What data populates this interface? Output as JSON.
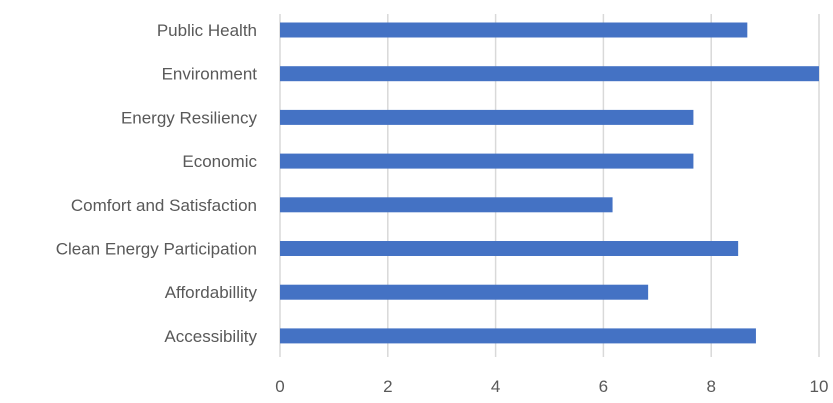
{
  "chart_data": {
    "type": "bar",
    "orientation": "horizontal",
    "title": "",
    "xlabel": "",
    "ylabel": "",
    "categories": [
      "Public Health",
      "Environment",
      "Energy Resiliency",
      "Economic",
      "Comfort and Satisfaction",
      "Clean Energy Participation",
      "Affordabillity",
      "Accessibility"
    ],
    "values": [
      8.67,
      10.0,
      7.67,
      7.67,
      6.17,
      8.5,
      6.83,
      8.83
    ],
    "xlim": [
      0,
      10
    ],
    "x_ticks": [
      "0",
      "2",
      "4",
      "6",
      "8",
      "10"
    ],
    "grid": "vertical",
    "legend": "none",
    "colors": {
      "bar": "#4472C4",
      "grid": "#D9D9D9",
      "text": "#595959"
    }
  }
}
